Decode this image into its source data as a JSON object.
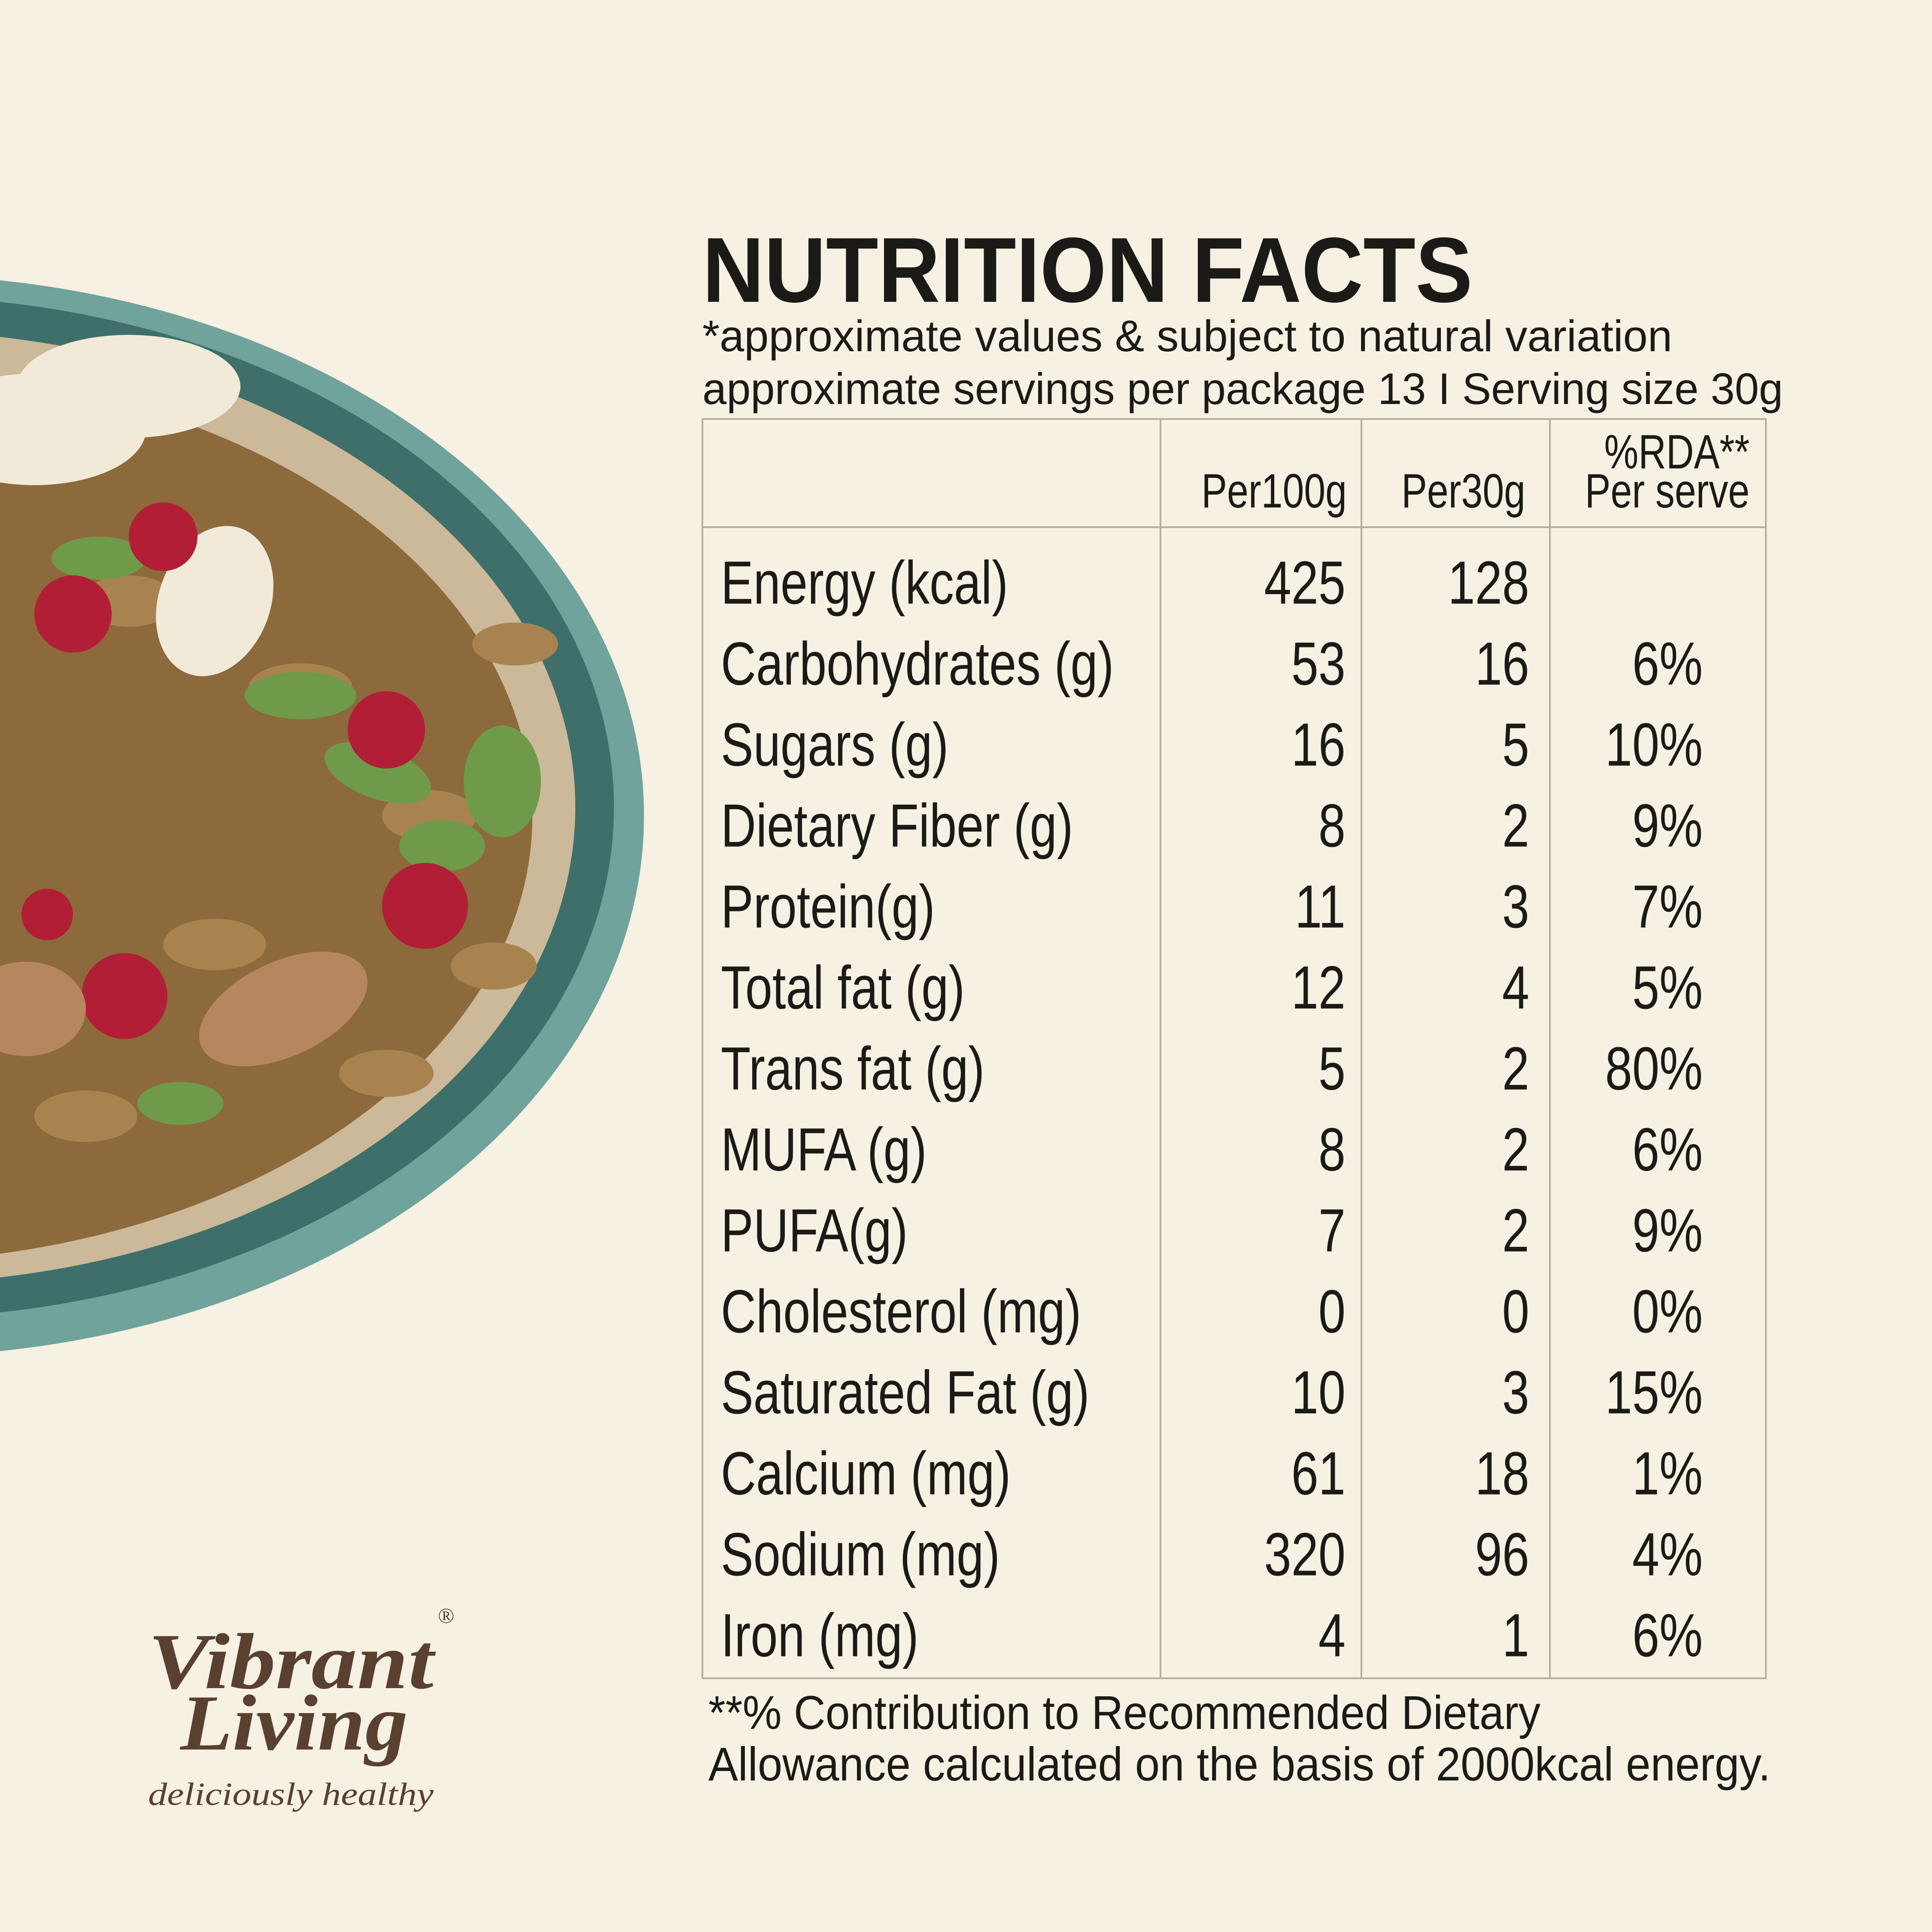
{
  "header": {
    "title": "NUTRITION FACTS",
    "subtitle": [
      "*approximate values & subject to natural variation",
      "approximate servings per package 13 I Serving size 30g"
    ]
  },
  "table": {
    "columns": [
      "Per100g",
      "Per30g",
      "%RDA**",
      "Per serve"
    ],
    "rows": [
      [
        "Energy (kcal)",
        "425",
        "128",
        null
      ],
      [
        "Carbohydrates (g)",
        "53",
        "16",
        "6%"
      ],
      [
        "Sugars (g)",
        "16",
        "5",
        "10%"
      ],
      [
        "Dietary Fiber (g)",
        "8",
        "2",
        "9%"
      ],
      [
        "Protein(g)",
        "11",
        "3",
        "7%"
      ],
      [
        "Total fat (g)",
        "12",
        "4",
        "5%"
      ],
      [
        "Trans fat (g)",
        "5",
        "2",
        "80%"
      ],
      [
        "MUFA (g)",
        "8",
        "2",
        "6%"
      ],
      [
        "PUFA(g)",
        "7",
        "2",
        "9%"
      ],
      [
        "Cholesterol (mg)",
        "0",
        "0",
        "0%"
      ],
      [
        "Saturated Fat (g)",
        "10",
        "3",
        "15%"
      ],
      [
        "Calcium (mg)",
        "61",
        "18",
        "1%"
      ],
      [
        "Sodium (mg)",
        "320",
        "96",
        "4%"
      ],
      [
        "Iron (mg)",
        "4",
        "1",
        "6%"
      ]
    ]
  },
  "footnote": [
    "**% Contribution to Recommended Dietary",
    "Allowance calculated on the basis of 2000kcal energy."
  ],
  "logo": {
    "brand": [
      "Vibrant",
      "Living"
    ],
    "mark": "®",
    "tagline": "deliciously healthy"
  }
}
